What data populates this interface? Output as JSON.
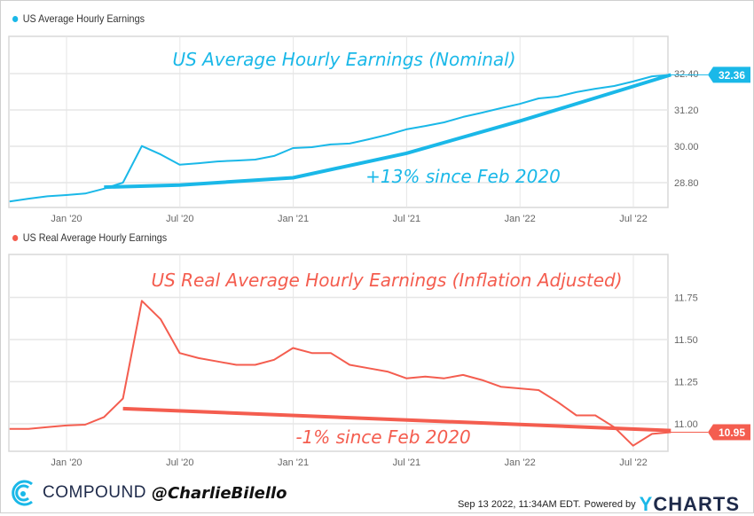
{
  "colors": {
    "nominal": "#1ab8e8",
    "real": "#f45d4f",
    "grid": "#e6e6e6",
    "axis_text": "#666666"
  },
  "chart_data": [
    {
      "type": "line",
      "legend": "US Average Hourly Earnings",
      "annotation_title": "US Average Hourly Earnings (Nominal)",
      "annotation_change": "+13% since Feb 2020",
      "last_value_label": "32.36",
      "x_start": "Sep 2019",
      "x_ticks": [
        "Jan '20",
        "Jul '20",
        "Jan '21",
        "Jul '21",
        "Jan '22",
        "Jul '22"
      ],
      "x_tick_months": [
        "2020-01",
        "2020-07",
        "2021-01",
        "2021-07",
        "2022-01",
        "2022-07"
      ],
      "y_ticks": [
        "28.80",
        "30.00",
        "31.20",
        "32.40"
      ],
      "ylim": [
        27.98,
        33.63
      ],
      "grid": true,
      "legend_position": "top-left",
      "series": [
        {
          "name": "US Average Hourly Earnings",
          "months": [
            "2019-09",
            "2019-10",
            "2019-11",
            "2019-12",
            "2020-01",
            "2020-02",
            "2020-03",
            "2020-04",
            "2020-05",
            "2020-06",
            "2020-07",
            "2020-08",
            "2020-09",
            "2020-10",
            "2020-11",
            "2020-12",
            "2021-01",
            "2021-02",
            "2021-03",
            "2021-04",
            "2021-05",
            "2021-06",
            "2021-07",
            "2021-08",
            "2021-09",
            "2021-10",
            "2021-11",
            "2021-12",
            "2022-01",
            "2022-02",
            "2022-03",
            "2022-04",
            "2022-05",
            "2022-06",
            "2022-07",
            "2022-08"
          ],
          "values": [
            28.18,
            28.27,
            28.35,
            28.39,
            28.44,
            28.6,
            28.8,
            30.01,
            29.73,
            29.39,
            29.44,
            29.5,
            29.53,
            29.56,
            29.68,
            29.94,
            29.97,
            30.06,
            30.09,
            30.23,
            30.38,
            30.56,
            30.67,
            30.79,
            30.97,
            31.11,
            31.26,
            31.4,
            31.58,
            31.64,
            31.79,
            31.9,
            31.99,
            32.14,
            32.31,
            32.36
          ]
        }
      ],
      "trend_line": {
        "months": [
          "2020-02",
          "2020-06",
          "2020-12",
          "2021-06",
          "2021-12",
          "2022-08"
        ],
        "values": [
          28.65,
          28.72,
          28.96,
          29.77,
          30.83,
          32.36
        ]
      }
    },
    {
      "type": "line",
      "legend": "US Real Average Hourly Earnings",
      "annotation_title": "US Real Average Hourly Earnings (Inflation Adjusted)",
      "annotation_change": "-1% since Feb 2020",
      "last_value_label": "10.95",
      "x_ticks": [
        "Jan '20",
        "Jul '20",
        "Jan '21",
        "Jul '21",
        "Jan '22",
        "Jul '22"
      ],
      "x_tick_months": [
        "2020-01",
        "2020-07",
        "2021-01",
        "2021-07",
        "2022-01",
        "2022-07"
      ],
      "y_ticks": [
        "11.00",
        "11.25",
        "11.50",
        "11.75"
      ],
      "ylim": [
        10.837,
        12.005
      ],
      "grid": true,
      "legend_position": "top-left",
      "series": [
        {
          "name": "US Real Average Hourly Earnings",
          "months": [
            "2019-09",
            "2019-10",
            "2019-11",
            "2019-12",
            "2020-01",
            "2020-02",
            "2020-03",
            "2020-04",
            "2020-05",
            "2020-06",
            "2020-07",
            "2020-08",
            "2020-09",
            "2020-10",
            "2020-11",
            "2020-12",
            "2021-01",
            "2021-02",
            "2021-03",
            "2021-04",
            "2021-05",
            "2021-06",
            "2021-07",
            "2021-08",
            "2021-09",
            "2021-10",
            "2021-11",
            "2021-12",
            "2022-01",
            "2022-02",
            "2022-03",
            "2022-04",
            "2022-05",
            "2022-06",
            "2022-07",
            "2022-08"
          ],
          "values": [
            10.97,
            10.97,
            10.98,
            10.99,
            10.995,
            11.04,
            11.15,
            11.73,
            11.62,
            11.42,
            11.39,
            11.37,
            11.35,
            11.35,
            11.38,
            11.45,
            11.42,
            11.42,
            11.35,
            11.33,
            11.31,
            11.27,
            11.28,
            11.27,
            11.29,
            11.26,
            11.22,
            11.21,
            11.2,
            11.13,
            11.05,
            11.05,
            10.98,
            10.87,
            10.94,
            10.95
          ]
        }
      ],
      "trend_line": {
        "months": [
          "2020-03",
          "2022-08"
        ],
        "values": [
          11.09,
          10.96
        ]
      }
    }
  ],
  "footer": {
    "brand": "COMPOUND",
    "handle": "@CharlieBilello",
    "timestamp": "Sep 13 2022, 11:34AM EDT.",
    "powered_by": "Powered by",
    "ycharts_y": "Y",
    "ycharts_rest": "CHARTS"
  }
}
